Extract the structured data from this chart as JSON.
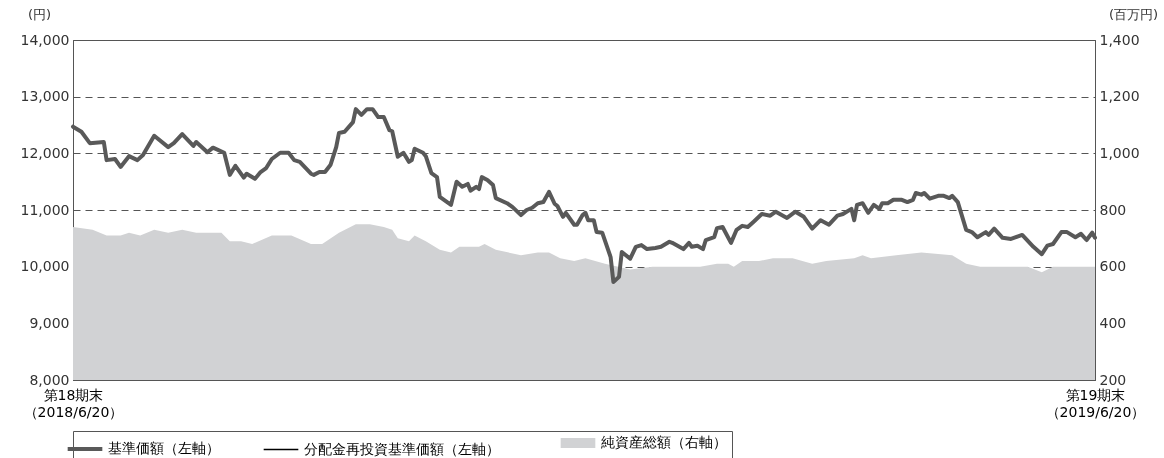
{
  "chart_data": {
    "type": "line",
    "ylabel": "(円)",
    "y2label": "(百万円)",
    "xlim": [
      "2018-06-20",
      "2019-06-20"
    ],
    "xticks": [
      {
        "value": "2018-06-20",
        "label": "第18期末（2018/6/20）"
      },
      {
        "value": "2019-06-20",
        "label": "第19期末（2019/6/20）"
      }
    ],
    "ylim": [
      8000,
      14000
    ],
    "yticks": [
      {
        "value": 8000,
        "label": "8,000"
      },
      {
        "value": 9000,
        "label": "9,000"
      },
      {
        "value": 10000,
        "label": "10,000"
      },
      {
        "value": 11000,
        "label": "11,000"
      },
      {
        "value": 12000,
        "label": "12,000"
      },
      {
        "value": 13000,
        "label": "13,000"
      },
      {
        "value": 14000,
        "label": "14,000"
      }
    ],
    "y2lim": [
      200,
      1400
    ],
    "y2ticks": [
      200,
      400,
      600,
      800,
      {
        "value": 1000,
        "label": "1,000"
      },
      {
        "value": 1200,
        "label": "1,200"
      },
      {
        "value": 1400,
        "label": "1,400"
      }
    ],
    "grid": "y",
    "legend": "bottom",
    "series": [
      {
        "name": "基準価額（左軸）",
        "color": "#595959",
        "x": [
          "2018-06-20",
          "2018-06-23",
          "2018-06-26",
          "2018-07-01",
          "2018-07-02",
          "2018-07-05",
          "2018-07-07",
          "2018-07-10",
          "2018-07-13",
          "2018-07-15",
          "2018-07-19",
          "2018-07-24",
          "2018-07-26",
          "2018-07-29",
          "2018-08-02",
          "2018-08-03",
          "2018-08-07",
          "2018-08-09",
          "2018-08-13",
          "2018-08-15",
          "2018-08-17",
          "2018-08-20",
          "2018-08-21",
          "2018-08-24",
          "2018-08-26",
          "2018-08-28",
          "2018-08-30",
          "2018-09-02",
          "2018-09-05",
          "2018-09-07",
          "2018-09-09",
          "2018-09-13",
          "2018-09-14",
          "2018-09-16",
          "2018-09-18",
          "2018-09-20",
          "2018-09-22",
          "2018-09-23",
          "2018-09-25",
          "2018-09-28",
          "2018-09-29",
          "2018-10-01",
          "2018-10-03",
          "2018-10-05",
          "2018-10-07",
          "2018-10-09",
          "2018-10-11",
          "2018-10-12",
          "2018-10-14",
          "2018-10-16",
          "2018-10-18",
          "2018-10-19",
          "2018-10-20",
          "2018-10-23",
          "2018-10-24",
          "2018-10-26",
          "2018-10-28",
          "2018-10-29",
          "2018-11-02",
          "2018-11-04",
          "2018-11-06",
          "2018-11-08",
          "2018-11-09",
          "2018-11-11",
          "2018-11-12",
          "2018-11-13",
          "2018-11-15",
          "2018-11-17",
          "2018-11-18",
          "2018-11-22",
          "2018-11-24",
          "2018-11-27",
          "2018-11-29",
          "2018-12-01",
          "2018-12-03",
          "2018-12-05",
          "2018-12-07",
          "2018-12-09",
          "2018-12-10",
          "2018-12-12",
          "2018-12-13",
          "2018-12-16",
          "2018-12-17",
          "2018-12-19",
          "2018-12-20",
          "2018-12-21",
          "2018-12-23",
          "2018-12-24",
          "2018-12-26",
          "2018-12-29",
          "2018-12-30",
          "2019-01-01",
          "2019-01-02",
          "2019-01-05",
          "2019-01-07",
          "2019-01-09",
          "2019-01-11",
          "2019-01-14",
          "2019-01-16",
          "2019-01-19",
          "2019-01-20",
          "2019-01-24",
          "2019-01-26",
          "2019-01-27",
          "2019-01-29",
          "2019-01-31",
          "2019-02-01",
          "2019-02-04",
          "2019-02-05",
          "2019-02-07",
          "2019-02-10",
          "2019-02-12",
          "2019-02-14",
          "2019-02-16",
          "2019-02-18",
          "2019-02-21",
          "2019-02-24",
          "2019-02-26",
          "2019-03-02",
          "2019-03-05",
          "2019-03-08",
          "2019-03-11",
          "2019-03-14",
          "2019-03-17",
          "2019-03-20",
          "2019-03-22",
          "2019-03-25",
          "2019-03-26",
          "2019-03-27",
          "2019-03-29",
          "2019-03-31",
          "2019-04-02",
          "2019-04-04",
          "2019-04-05",
          "2019-04-07",
          "2019-04-09",
          "2019-04-12",
          "2019-04-14",
          "2019-04-16",
          "2019-04-17",
          "2019-04-19",
          "2019-04-20",
          "2019-04-22",
          "2019-04-25",
          "2019-04-27",
          "2019-04-29",
          "2019-04-30",
          "2019-05-02",
          "2019-05-05",
          "2019-05-07",
          "2019-05-09",
          "2019-05-12",
          "2019-05-13",
          "2019-05-15",
          "2019-05-18",
          "2019-05-21",
          "2019-05-25",
          "2019-05-29",
          "2019-06-01",
          "2019-06-03",
          "2019-06-05",
          "2019-06-08",
          "2019-06-10",
          "2019-06-13",
          "2019-06-15",
          "2019-06-17",
          "2019-06-19",
          "2019-06-20"
        ],
        "values": [
          12470,
          12380,
          12180,
          12200,
          11880,
          11900,
          11760,
          11950,
          11880,
          11970,
          12310,
          12110,
          12180,
          12340,
          12130,
          12200,
          12020,
          12100,
          12010,
          11620,
          11780,
          11570,
          11640,
          11550,
          11670,
          11740,
          11900,
          12010,
          12010,
          11880,
          11850,
          11640,
          11620,
          11670,
          11670,
          11800,
          12110,
          12360,
          12380,
          12550,
          12780,
          12680,
          12780,
          12780,
          12640,
          12640,
          12410,
          12390,
          11940,
          12010,
          11850,
          11880,
          12080,
          12010,
          11950,
          11650,
          11580,
          11230,
          11090,
          11500,
          11410,
          11460,
          11340,
          11410,
          11370,
          11580,
          11530,
          11440,
          11210,
          11120,
          11050,
          10910,
          11000,
          11040,
          11120,
          11140,
          11320,
          11110,
          11070,
          10880,
          10950,
          10740,
          10740,
          10910,
          10950,
          10820,
          10820,
          10610,
          10600,
          10170,
          9730,
          9820,
          10260,
          10140,
          10350,
          10380,
          10310,
          10330,
          10350,
          10440,
          10420,
          10310,
          10420,
          10350,
          10370,
          10310,
          10470,
          10520,
          10680,
          10700,
          10420,
          10650,
          10720,
          10700,
          10790,
          10930,
          10900,
          10970,
          10860,
          10970,
          10880,
          10670,
          10820,
          10740,
          10900,
          10930,
          11020,
          10820,
          11090,
          11120,
          10950,
          11090,
          11020,
          11120,
          11120,
          11180,
          11180,
          11140,
          11180,
          11300,
          11270,
          11300,
          11200,
          11250,
          11250,
          11210,
          11250,
          11140,
          10650,
          10610,
          10520,
          10610,
          10560,
          10670,
          10510,
          10490,
          10560,
          10350,
          10220,
          10370,
          10400,
          10610,
          10610,
          10520,
          10580,
          10470,
          10600,
          10510
        ]
      },
      {
        "name": "分配金再投資基準価額（左軸）",
        "type": "line",
        "color": "#000000"
      },
      {
        "name": "純資産総額（右軸）",
        "type": "area",
        "axis": "y2",
        "color": "#d1d2d4",
        "x": [
          "2018-06-20",
          "2018-06-27",
          "2018-07-02",
          "2018-07-07",
          "2018-07-10",
          "2018-07-14",
          "2018-07-19",
          "2018-07-24",
          "2018-07-29",
          "2018-08-03",
          "2018-08-12",
          "2018-08-15",
          "2018-08-19",
          "2018-08-23",
          "2018-08-30",
          "2018-09-06",
          "2018-09-13",
          "2018-09-17",
          "2018-09-23",
          "2018-09-29",
          "2018-10-04",
          "2018-10-09",
          "2018-10-12",
          "2018-10-14",
          "2018-10-18",
          "2018-10-20",
          "2018-10-24",
          "2018-10-29",
          "2018-11-02",
          "2018-11-05",
          "2018-11-12",
          "2018-11-14",
          "2018-11-18",
          "2018-11-27",
          "2018-12-03",
          "2018-12-07",
          "2018-12-11",
          "2018-12-16",
          "2018-12-20",
          "2018-12-27",
          "2019-01-05",
          "2019-01-13",
          "2019-01-20",
          "2019-01-30",
          "2019-02-05",
          "2019-02-09",
          "2019-02-11",
          "2019-02-14",
          "2019-02-20",
          "2019-02-25",
          "2019-03-04",
          "2019-03-11",
          "2019-03-16",
          "2019-03-26",
          "2019-03-29",
          "2019-04-01",
          "2019-04-10",
          "2019-04-19",
          "2019-04-30",
          "2019-05-05",
          "2019-05-10",
          "2019-05-15",
          "2019-05-20",
          "2019-05-27",
          "2019-06-01",
          "2019-06-05",
          "2019-06-12",
          "2019-06-20"
        ],
        "values": [
          740,
          730,
          710,
          710,
          720,
          710,
          730,
          720,
          730,
          720,
          720,
          690,
          690,
          680,
          710,
          710,
          680,
          680,
          720,
          750,
          750,
          740,
          730,
          700,
          690,
          710,
          690,
          660,
          650,
          670,
          670,
          680,
          660,
          640,
          650,
          650,
          630,
          620,
          630,
          610,
          590,
          600,
          600,
          600,
          610,
          610,
          600,
          620,
          620,
          630,
          630,
          610,
          620,
          630,
          640,
          630,
          640,
          650,
          640,
          610,
          600,
          600,
          600,
          600,
          580,
          600,
          600,
          600
        ]
      }
    ]
  }
}
